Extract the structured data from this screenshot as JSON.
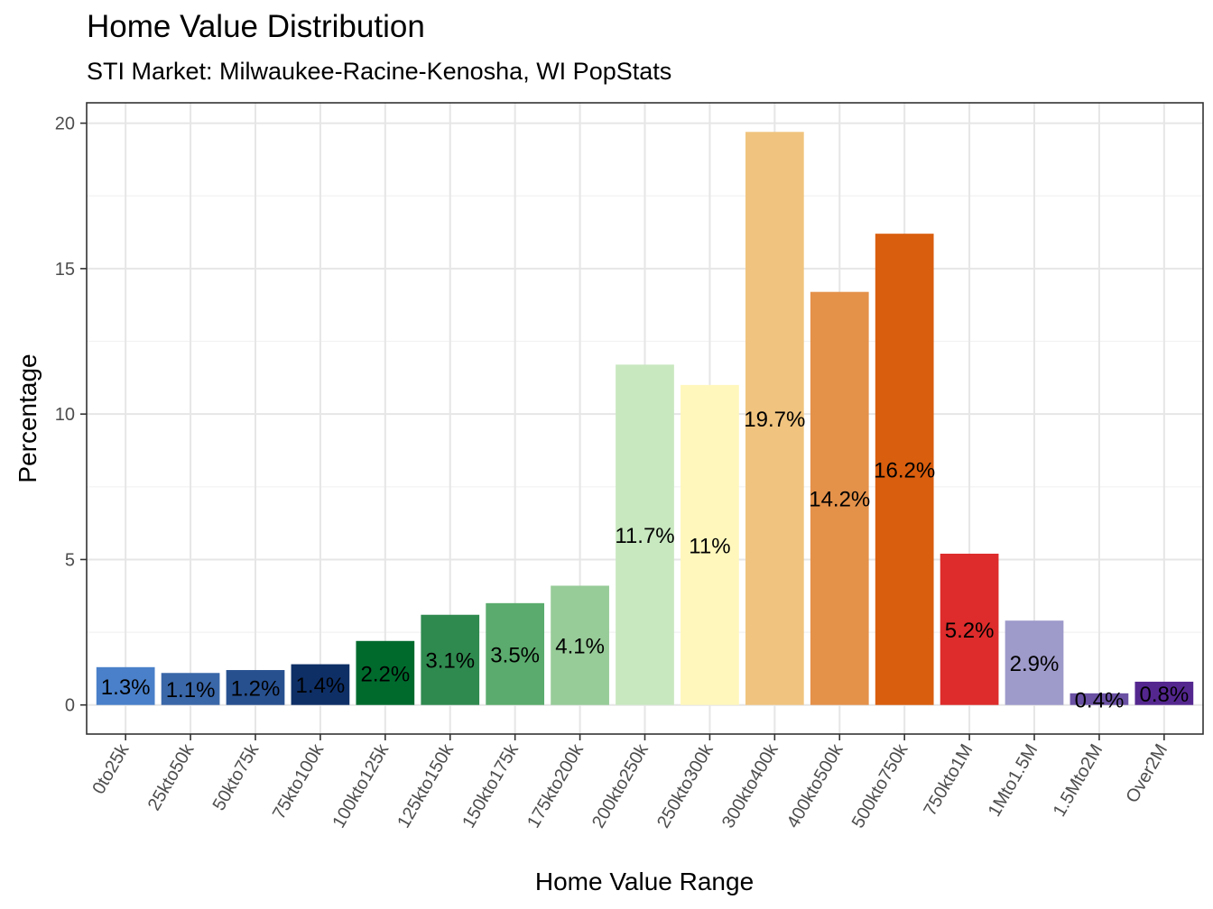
{
  "chart_data": {
    "type": "bar",
    "title": "Home Value Distribution",
    "subtitle": "STI Market: Milwaukee-Racine-Kenosha, WI PopStats",
    "xlabel": "Home Value Range",
    "ylabel": "Percentage",
    "ylim": [
      -1,
      20.7
    ],
    "yticks": [
      0,
      5,
      10,
      15,
      20
    ],
    "grid": true,
    "legend": "none",
    "categories": [
      "0to25k",
      "25kto50k",
      "50kto75k",
      "75kto100k",
      "100kto125k",
      "125kto150k",
      "150kto175k",
      "175kto200k",
      "200kto250k",
      "250kto300k",
      "300kto400k",
      "400kto500k",
      "500kto750k",
      "750kto1M",
      "1Mto1.5M",
      "1.5Mto2M",
      "Over2M"
    ],
    "values": [
      1.3,
      1.1,
      1.2,
      1.4,
      2.2,
      3.1,
      3.5,
      4.1,
      11.7,
      11.0,
      19.7,
      14.2,
      16.2,
      5.2,
      2.9,
      0.4,
      0.8
    ],
    "labels": [
      "1.3%",
      "1.1%",
      "1.2%",
      "1.4%",
      "2.2%",
      "3.1%",
      "3.5%",
      "4.1%",
      "11.7%",
      "11%",
      "19.7%",
      "14.2%",
      "16.2%",
      "5.2%",
      "2.9%",
      "0.4%",
      "0.8%"
    ],
    "colors": [
      "#4a80c9",
      "#3a67a8",
      "#27508f",
      "#0e2f66",
      "#006a2d",
      "#2f8a4f",
      "#5aab6d",
      "#97cb98",
      "#c8e8c0",
      "#fff7bc",
      "#f0c47f",
      "#e4914a",
      "#d95e0e",
      "#dd2c2b",
      "#9e9aca",
      "#6a51a3",
      "#54278f"
    ]
  }
}
